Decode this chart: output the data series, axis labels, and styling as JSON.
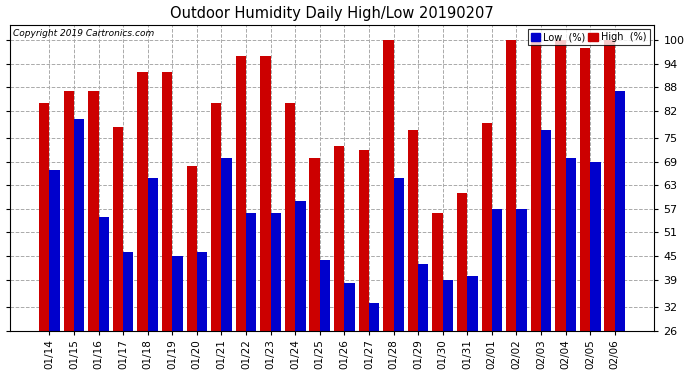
{
  "title": "Outdoor Humidity Daily High/Low 20190207",
  "copyright": "Copyright 2019 Cartronics.com",
  "dates": [
    "01/14",
    "01/15",
    "01/16",
    "01/17",
    "01/18",
    "01/19",
    "01/20",
    "01/21",
    "01/22",
    "01/23",
    "01/24",
    "01/25",
    "01/26",
    "01/27",
    "01/28",
    "01/29",
    "01/30",
    "01/31",
    "02/01",
    "02/02",
    "02/03",
    "02/04",
    "02/05",
    "02/06"
  ],
  "low": [
    67,
    80,
    55,
    46,
    65,
    45,
    46,
    70,
    56,
    56,
    59,
    44,
    38,
    33,
    65,
    43,
    39,
    40,
    57,
    57,
    77,
    70,
    69,
    87
  ],
  "high": [
    84,
    87,
    87,
    78,
    92,
    92,
    68,
    84,
    96,
    96,
    84,
    70,
    73,
    72,
    100,
    77,
    56,
    61,
    79,
    100,
    100,
    100,
    98,
    100
  ],
  "low_color": "#0000cc",
  "high_color": "#cc0000",
  "bg_color": "#ffffff",
  "grid_color": "#aaaaaa",
  "ylim_min": 26,
  "ylim_max": 104,
  "yticks": [
    26,
    32,
    39,
    45,
    51,
    57,
    63,
    69,
    75,
    82,
    88,
    94,
    100
  ],
  "legend_low_label": "Low  (%)",
  "legend_high_label": "High  (%)",
  "bar_bottom": 26,
  "bar_width": 0.42
}
